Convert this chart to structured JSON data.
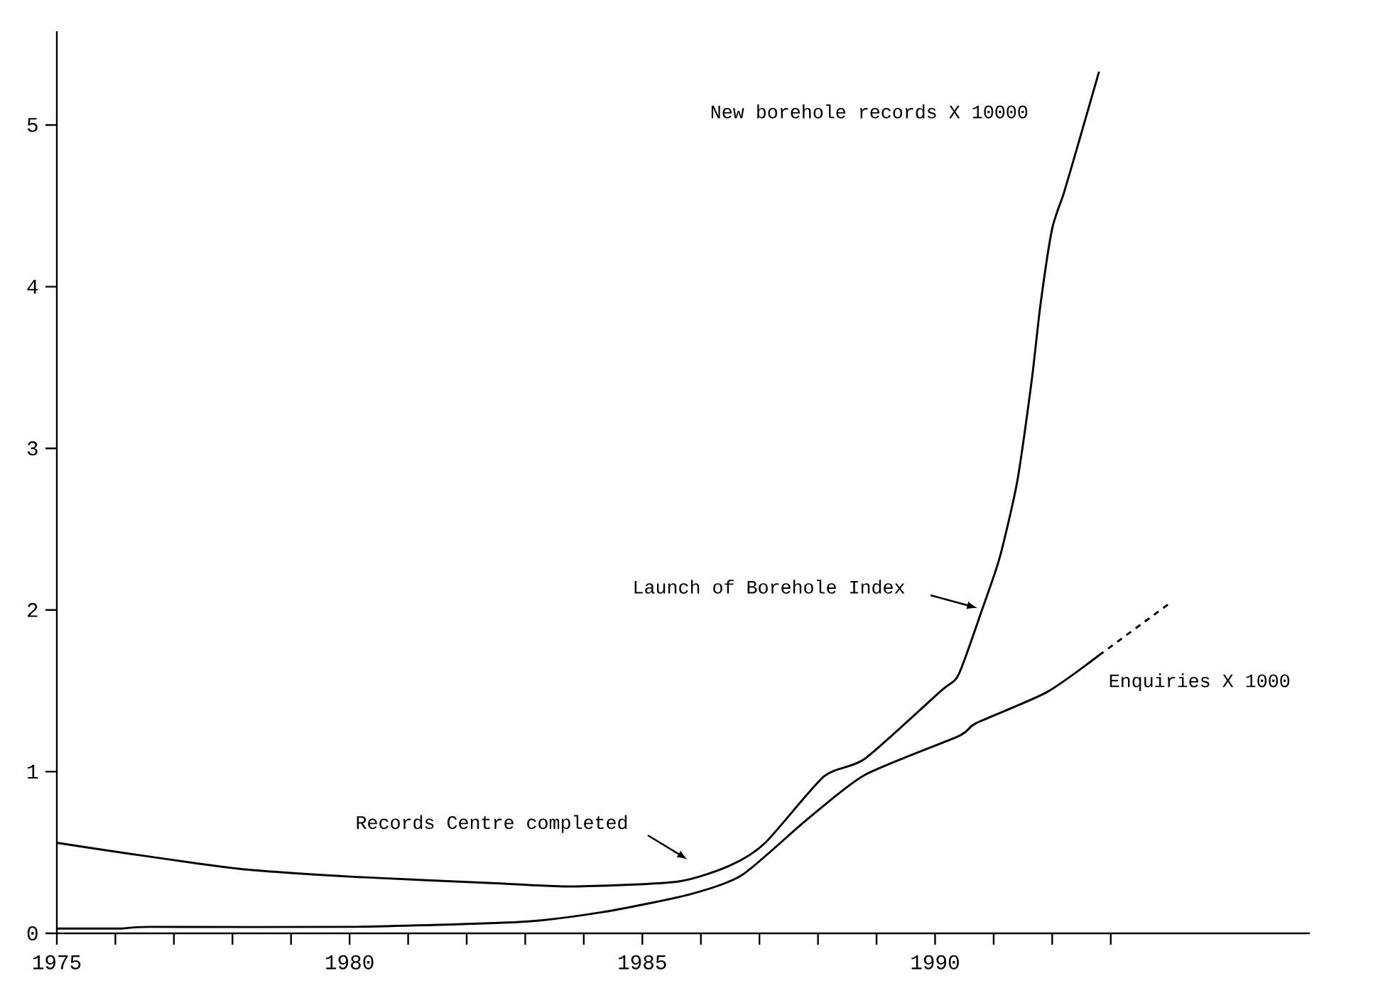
{
  "chart_data": {
    "type": "line",
    "xlim": [
      1975,
      1996.4
    ],
    "ylim": [
      0,
      5.58
    ],
    "xticks": [
      1975,
      {
        "value": 1976,
        "label": null
      },
      {
        "value": 1977,
        "label": null
      },
      {
        "value": 1978,
        "label": null
      },
      {
        "value": 1979,
        "label": null
      },
      1980,
      {
        "value": 1981,
        "label": null
      },
      {
        "value": 1982,
        "label": null
      },
      {
        "value": 1983,
        "label": null
      },
      {
        "value": 1984,
        "label": null
      },
      1985,
      {
        "value": 1986,
        "label": null
      },
      {
        "value": 1987,
        "label": null
      },
      {
        "value": 1988,
        "label": null
      },
      {
        "value": 1989,
        "label": null
      },
      1990,
      {
        "value": 1991,
        "label": null
      },
      {
        "value": 1992,
        "label": null
      },
      {
        "value": 1993,
        "label": null
      }
    ],
    "yticks": [
      0,
      1,
      2,
      3,
      4,
      5
    ],
    "marker": "none",
    "series": [
      {
        "name": "New borehole records X 10000",
        "color": "#000000",
        "x": [
          1975,
          1976.1,
          1978.1,
          1980.05,
          1982.5,
          1983.8,
          1985.6,
          1986.5,
          1987.1,
          1988.1,
          1988.8,
          1990.1,
          1990.4,
          1990.8,
          1991.1,
          1991.4,
          1991.65,
          1991.8,
          1992.0,
          1992.2,
          1992.45,
          1992.8
        ],
        "values": [
          0.56,
          0.5,
          0.4,
          0.35,
          0.31,
          0.29,
          0.32,
          0.42,
          0.56,
          0.97,
          1.08,
          1.5,
          1.6,
          2.0,
          2.32,
          2.79,
          3.42,
          3.89,
          4.36,
          4.58,
          4.89,
          5.33
        ]
      },
      {
        "name": "Enquiries X 1000",
        "color": "#000000",
        "x": [
          1975,
          1976.1,
          1976.6,
          1980,
          1982.9,
          1984.3,
          1985.8,
          1986.7,
          1987.8,
          1988.8,
          1990.4,
          1990.7,
          1991.9,
          1992.8
        ],
        "values": [
          0.03,
          0.03,
          0.04,
          0.04,
          0.07,
          0.13,
          0.24,
          0.36,
          0.7,
          0.98,
          1.22,
          1.3,
          1.49,
          1.72
        ]
      },
      {
        "color": "#000000",
        "line_style": "dashed",
        "x": [
          1992.8,
          1994.0
        ],
        "values": [
          1.72,
          2.04
        ]
      }
    ],
    "annotations": [
      "Records Centre completed",
      "Launch of Borehole Index"
    ]
  }
}
